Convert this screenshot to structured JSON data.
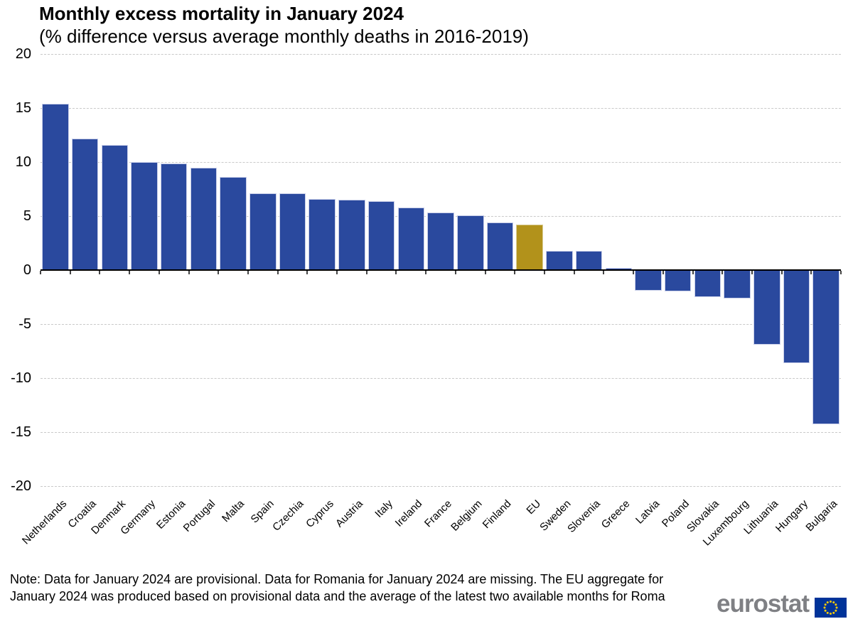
{
  "note": {
    "line1": "Note: Data for January 2024 are provisional. Data for Romania for January 2024 are missing. The EU aggregate for",
    "line2": "January 2024 was produced based on provisional data and the average of the latest two available months for Roma"
  },
  "logo": {
    "text": "eurostat"
  },
  "colors": {
    "bar_blue": "#2A499E",
    "bar_eu_gold": "#B2921B",
    "bar_border_blue": "#C9CFE9",
    "bar_border_gold": "#D9CD96",
    "gridline": "#C9C9C9",
    "axis": "#000000",
    "logo_gray": "#7F8084",
    "flag_blue": "#003399",
    "flag_yellow": "#FFCC00",
    "background": "#FFFFFF"
  },
  "chart_data": {
    "type": "bar",
    "title": "Monthly excess mortality in January 2024",
    "subtitle": "(% difference versus average monthly deaths in 2016-2019)",
    "categories": [
      "Netherlands",
      "Croatia",
      "Denmark",
      "Germany",
      "Estonia",
      "Portugal",
      "Malta",
      "Spain",
      "Czechia",
      "Cyprus",
      "Austria",
      "Italy",
      "Ireland",
      "France",
      "Belgium",
      "Finland",
      "EU",
      "Sweden",
      "Slovenia",
      "Greece",
      "Latvia",
      "Poland",
      "Slovakia",
      "Luxembourg",
      "Lithuania",
      "Hungary",
      "Bulgaria"
    ],
    "values": [
      15.4,
      12.2,
      11.6,
      10.0,
      9.9,
      9.5,
      8.6,
      7.1,
      7.1,
      6.6,
      6.5,
      6.4,
      5.8,
      5.3,
      5.1,
      4.4,
      4.2,
      1.8,
      1.8,
      0.2,
      -1.9,
      -2.0,
      -2.5,
      -2.6,
      -6.9,
      -8.6,
      -14.3
    ],
    "highlighted_category": "EU",
    "xlabel": "",
    "ylabel": "",
    "ylim": [
      -20,
      20
    ],
    "yticks": [
      20,
      15,
      10,
      5,
      0,
      -5,
      -10,
      -15,
      -20
    ],
    "grid": "horizontal-dashed",
    "legend": "none"
  }
}
